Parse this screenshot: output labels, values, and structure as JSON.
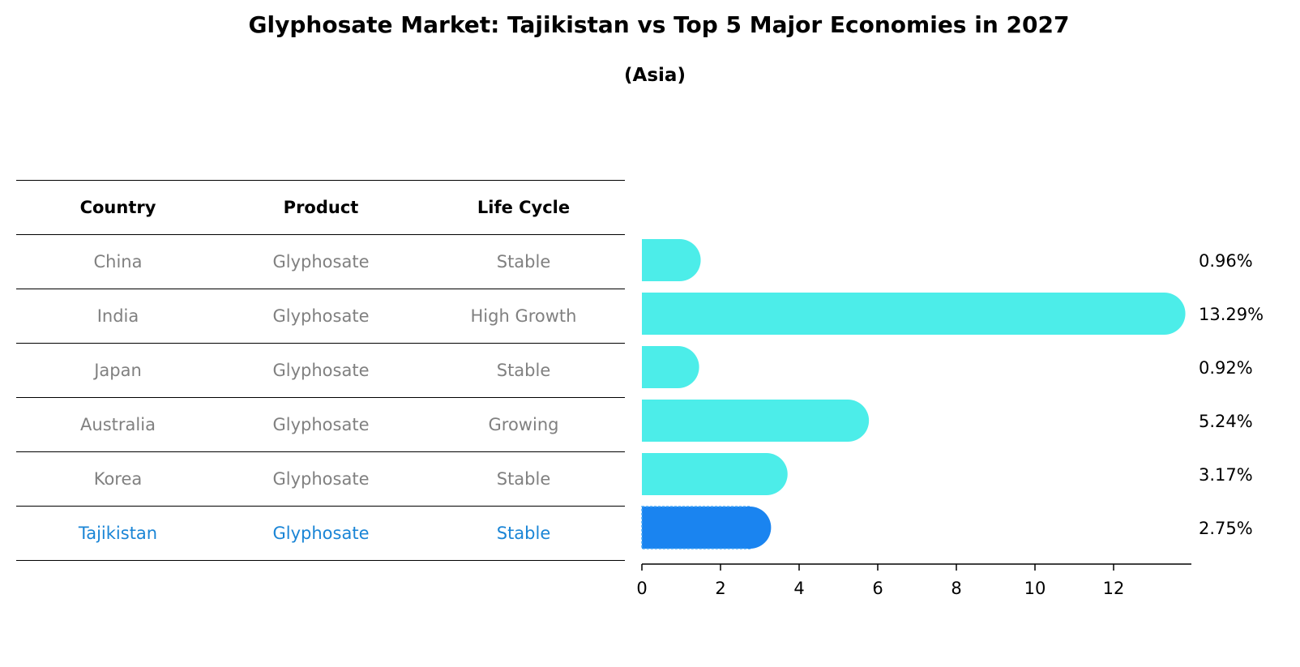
{
  "chart_data": {
    "type": "bar",
    "orientation": "horizontal",
    "title": "Glyphosate Market: Tajikistan vs Top 5 Major Economies in 2027",
    "subtitle": "(Asia)",
    "table": {
      "headers": [
        "Country",
        "Product",
        "Life Cycle"
      ],
      "rows": [
        [
          "China",
          "Glyphosate",
          "Stable"
        ],
        [
          "India",
          "Glyphosate",
          "High Growth"
        ],
        [
          "Japan",
          "Glyphosate",
          "Stable"
        ],
        [
          "Australia",
          "Glyphosate",
          "Growing"
        ],
        [
          "Korea",
          "Glyphosate",
          "Stable"
        ],
        [
          "Tajikistan",
          "Glyphosate",
          "Stable"
        ]
      ],
      "highlight_row": 5
    },
    "categories": [
      "China",
      "India",
      "Japan",
      "Australia",
      "Korea",
      "Tajikistan"
    ],
    "values": [
      0.96,
      13.29,
      0.92,
      5.24,
      3.17,
      2.75
    ],
    "value_labels": [
      "0.96%",
      "13.29%",
      "0.92%",
      "5.24%",
      "3.17%",
      "2.75%"
    ],
    "xlim": [
      0,
      14
    ],
    "xticks": [
      0,
      2,
      4,
      6,
      8,
      10,
      12
    ],
    "colors": {
      "bar": "#4cede9",
      "highlight": "#1a84f0",
      "highlight_text": "#1a85d6"
    }
  }
}
